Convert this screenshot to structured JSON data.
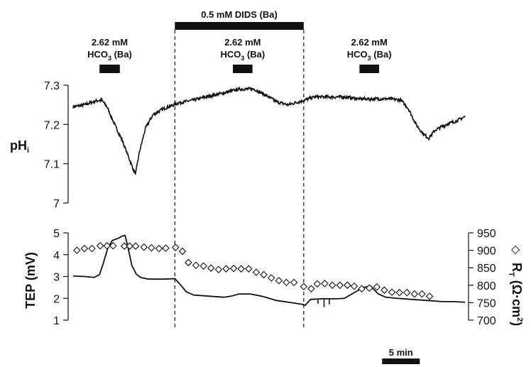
{
  "chart_data": [
    {
      "type": "line",
      "ylabel": "pHi",
      "ylabel_main": "pH",
      "ylabel_sub": "i",
      "ylim": [
        7.0,
        7.3
      ],
      "yticks": [
        "7",
        "7.1",
        "7.2",
        "7.3"
      ],
      "time_unit": "min",
      "xlim": [
        0,
        52
      ],
      "series": [
        {
          "points": [
            [
              0,
              7.245
            ],
            [
              1.5,
              7.25
            ],
            [
              3,
              7.26
            ],
            [
              3.8,
              7.262
            ],
            [
              4.5,
              7.245
            ],
            [
              5.5,
              7.2
            ],
            [
              6.5,
              7.16
            ],
            [
              7.3,
              7.12
            ],
            [
              8.0,
              7.085
            ],
            [
              8.3,
              7.075
            ],
            [
              8.8,
              7.13
            ],
            [
              9.6,
              7.19
            ],
            [
              10.6,
              7.225
            ],
            [
              12,
              7.24
            ],
            [
              14,
              7.255
            ],
            [
              16,
              7.262
            ],
            [
              18,
              7.272
            ],
            [
              20,
              7.28
            ],
            [
              22,
              7.29
            ],
            [
              24,
              7.29
            ],
            [
              25.5,
              7.275
            ],
            [
              27,
              7.258
            ],
            [
              28.5,
              7.25
            ],
            [
              30,
              7.258
            ],
            [
              32,
              7.27
            ],
            [
              34,
              7.27
            ],
            [
              36,
              7.27
            ],
            [
              38,
              7.265
            ],
            [
              40,
              7.265
            ],
            [
              42,
              7.265
            ],
            [
              43.5,
              7.262
            ],
            [
              44.5,
              7.24
            ],
            [
              45.5,
              7.2
            ],
            [
              46.5,
              7.175
            ],
            [
              47.2,
              7.165
            ],
            [
              48,
              7.185
            ],
            [
              49.5,
              7.2
            ],
            [
              51,
              7.21
            ],
            [
              52,
              7.22
            ]
          ],
          "noise": 0.008
        }
      ],
      "solution_bars": [
        {
          "label_line1": "2.62 mM",
          "label_line2_main": "HCO",
          "label_line2_sub": "3",
          "label_line2_tail": " (Ba)",
          "start": 3.5,
          "end": 6.2
        },
        {
          "label_line1": "2.62 mM",
          "label_line2_main": "HCO",
          "label_line2_sub": "3",
          "label_line2_tail": " (Ba)",
          "start": 21.2,
          "end": 23.8
        },
        {
          "label_line1": "2.62 mM",
          "label_line2_main": "HCO",
          "label_line2_sub": "3",
          "label_line2_tail": " (Ba)",
          "start": 38.0,
          "end": 40.6
        }
      ],
      "treatment_bar": {
        "label": "0.5 mM DIDS (Ba)",
        "start": 13.5,
        "end": 30.6
      }
    },
    {
      "type": "line",
      "ylabel": "TEP (mV)",
      "ylim": [
        1,
        5
      ],
      "yticks": [
        "1",
        "2",
        "3",
        "4",
        "5"
      ],
      "y2label": "RT (Ω·cm2)",
      "y2label_main": "R",
      "y2label_sub": "T",
      "y2label_tail": " (Ω·cm",
      "y2label_sup": "2",
      "y2label_close": ")",
      "y2lim": [
        700,
        950
      ],
      "y2ticks": [
        "700",
        "750",
        "800",
        "850",
        "900",
        "950"
      ],
      "series": [
        {
          "name": "TEP",
          "axis": "left",
          "points": [
            [
              0,
              3.02
            ],
            [
              1.5,
              3.0
            ],
            [
              2.8,
              2.96
            ],
            [
              3.5,
              3.08
            ],
            [
              4.0,
              3.6
            ],
            [
              4.6,
              4.3
            ],
            [
              5.2,
              4.65
            ],
            [
              6.0,
              4.75
            ],
            [
              6.5,
              4.85
            ],
            [
              6.9,
              4.88
            ],
            [
              7.3,
              4.3
            ],
            [
              7.8,
              3.5
            ],
            [
              8.4,
              3.1
            ],
            [
              9.0,
              2.95
            ],
            [
              10,
              2.88
            ],
            [
              11,
              2.88
            ],
            [
              12,
              2.88
            ],
            [
              13.5,
              2.9
            ],
            [
              14.3,
              2.6
            ],
            [
              15,
              2.3
            ],
            [
              16,
              2.15
            ],
            [
              18,
              2.1
            ],
            [
              20,
              2.05
            ],
            [
              21,
              2.1
            ],
            [
              22,
              2.2
            ],
            [
              23.5,
              2.2
            ],
            [
              25,
              2.1
            ],
            [
              27,
              1.9
            ],
            [
              29,
              1.8
            ],
            [
              30.5,
              1.72
            ],
            [
              30.8,
              1.68
            ],
            [
              31.5,
              1.95
            ],
            [
              33,
              1.98
            ],
            [
              35,
              1.98
            ],
            [
              36,
              2.0
            ],
            [
              37.5,
              2.3
            ],
            [
              38.5,
              2.5
            ],
            [
              39.5,
              2.55
            ],
            [
              40.5,
              2.2
            ],
            [
              41.5,
              2.05
            ],
            [
              43,
              2.0
            ],
            [
              45,
              1.95
            ],
            [
              47,
              1.9
            ],
            [
              49,
              1.85
            ],
            [
              50.5,
              1.85
            ],
            [
              52,
              1.82
            ]
          ],
          "spikes": [
            [
              32.5,
              1.75
            ],
            [
              33.3,
              1.6
            ],
            [
              34,
              1.72
            ]
          ]
        },
        {
          "name": "RT (Ω·cm2)",
          "axis": "right",
          "marker": "diamond",
          "points": [
            [
              0.5,
              900
            ],
            [
              1.5,
              905
            ],
            [
              2.5,
              905
            ],
            [
              3.6,
              913
            ],
            [
              4.5,
              913
            ],
            [
              5.3,
              913
            ],
            [
              6.8,
              912
            ],
            [
              7.5,
              912
            ],
            [
              8.3,
              912
            ],
            [
              9.4,
              909
            ],
            [
              10.4,
              907
            ],
            [
              11.4,
              905
            ],
            [
              12.3,
              906
            ],
            [
              13.6,
              908
            ],
            [
              14.5,
              897
            ],
            [
              15.3,
              865
            ],
            [
              16.3,
              857
            ],
            [
              17.3,
              855
            ],
            [
              18.3,
              849
            ],
            [
              19.3,
              845
            ],
            [
              20.3,
              847
            ],
            [
              21.3,
              848
            ],
            [
              22.3,
              847
            ],
            [
              23.3,
              847
            ],
            [
              24.3,
              837
            ],
            [
              25.3,
              830
            ],
            [
              26.3,
              821
            ],
            [
              27.3,
              813
            ],
            [
              28.3,
              808
            ],
            [
              29.3,
              808
            ],
            [
              30.6,
              796
            ],
            [
              31.6,
              790
            ],
            [
              32.4,
              804
            ],
            [
              33.4,
              805
            ],
            [
              34.4,
              800
            ],
            [
              35.4,
              800
            ],
            [
              36.4,
              800
            ],
            [
              37.3,
              797
            ],
            [
              38.3,
              790
            ],
            [
              39.3,
              792
            ],
            [
              40.3,
              795
            ],
            [
              41.3,
              786
            ],
            [
              42.3,
              780
            ],
            [
              43.3,
              779
            ],
            [
              44.3,
              779
            ],
            [
              45.3,
              775
            ],
            [
              46.3,
              775
            ],
            [
              47.3,
              768
            ]
          ]
        }
      ],
      "scale_bar": {
        "label": "5 min",
        "minutes": 5,
        "start": 41.0
      }
    }
  ]
}
